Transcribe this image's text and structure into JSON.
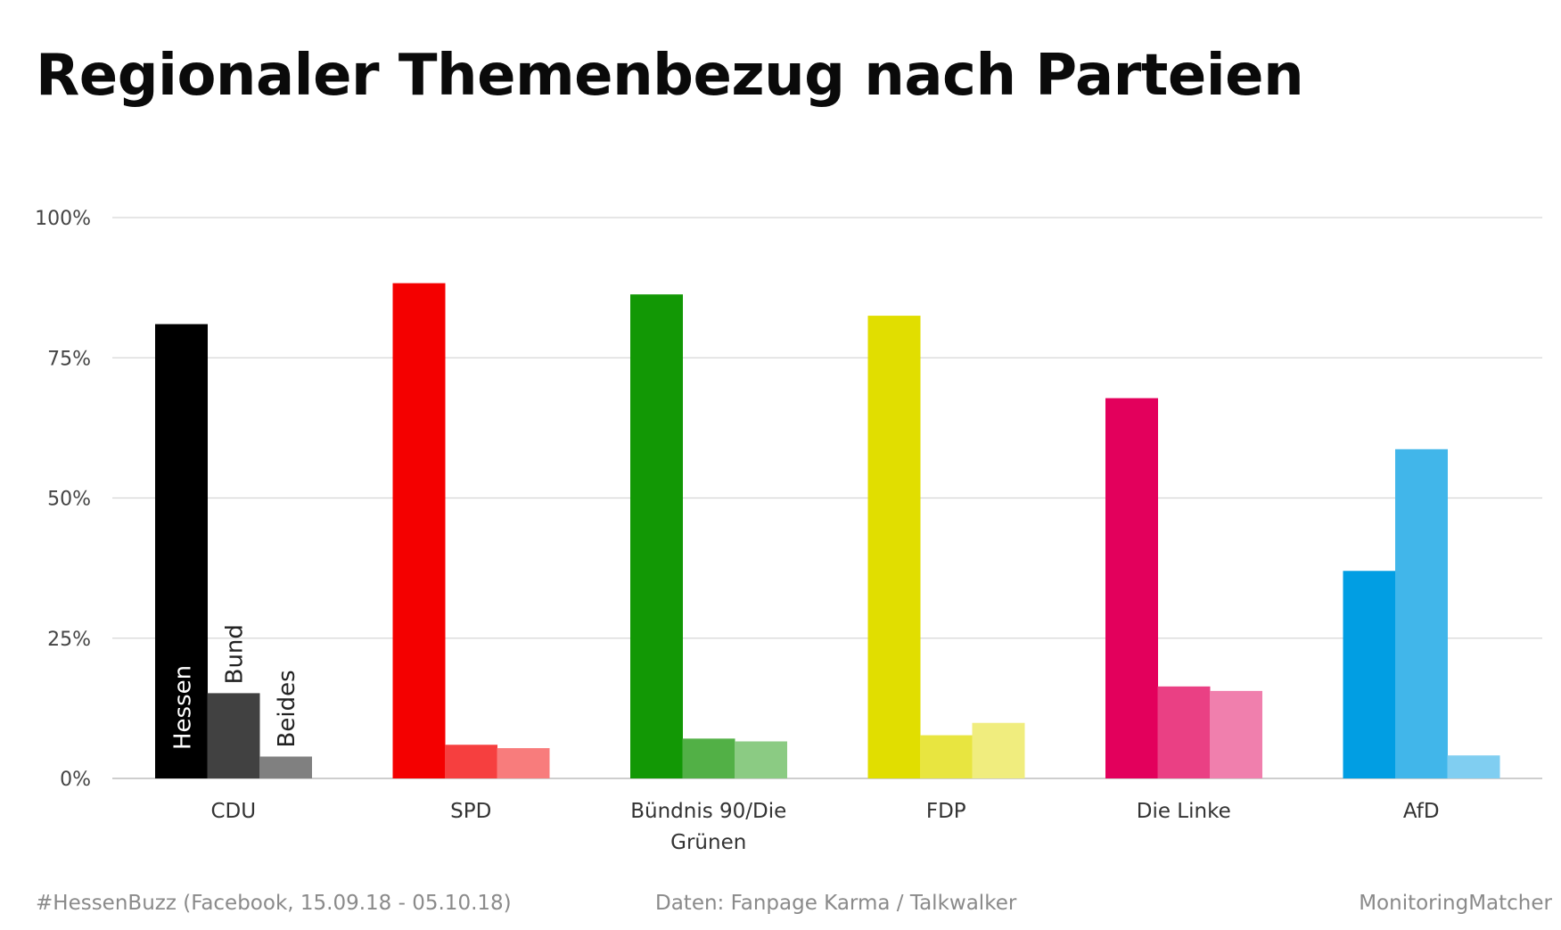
{
  "chart_data": {
    "type": "bar",
    "title": "Regionaler Themenbezug nach Parteien",
    "xlabel": "",
    "ylabel": "",
    "ylim": [
      0,
      100
    ],
    "yticks": [
      0,
      25,
      50,
      75,
      100
    ],
    "ytick_labels": [
      "0%",
      "25%",
      "50%",
      "75%",
      "100%"
    ],
    "grid": true,
    "categories": [
      [
        "CDU"
      ],
      [
        "SPD"
      ],
      [
        "Bündnis 90/Die",
        "Grünen"
      ],
      [
        "FDP"
      ],
      [
        "Die Linke"
      ],
      [
        "AfD"
      ]
    ],
    "series": [
      {
        "name": "Hessen",
        "values": [
          81,
          88.3,
          86.3,
          82.5,
          67.8,
          37
        ]
      },
      {
        "name": "Bund",
        "values": [
          15.2,
          6,
          7.1,
          7.7,
          16.4,
          58.7
        ]
      },
      {
        "name": "Beides",
        "values": [
          3.9,
          5.4,
          6.6,
          9.9,
          15.6,
          4.1
        ]
      }
    ],
    "colors": [
      [
        "#000000",
        "#414141",
        "#808080"
      ],
      [
        "#f40000",
        "#f63f3f",
        "#f87c7c"
      ],
      [
        "#129805",
        "#52b046",
        "#8bcb83"
      ],
      [
        "#e1de00",
        "#e8e540",
        "#f0ed7e"
      ],
      [
        "#e3005c",
        "#ea4084",
        "#f07fad"
      ],
      [
        "#019ee3",
        "#41b6ea",
        "#80cef1"
      ]
    ],
    "series_label_color": [
      "#ffffff",
      "#222222",
      "#222222"
    ]
  },
  "footer": {
    "left": "#HessenBuzz (Facebook, 15.09.18 - 05.10.18)",
    "center": "Daten: Fanpage Karma / Talkwalker",
    "right": "MonitoringMatcher"
  }
}
